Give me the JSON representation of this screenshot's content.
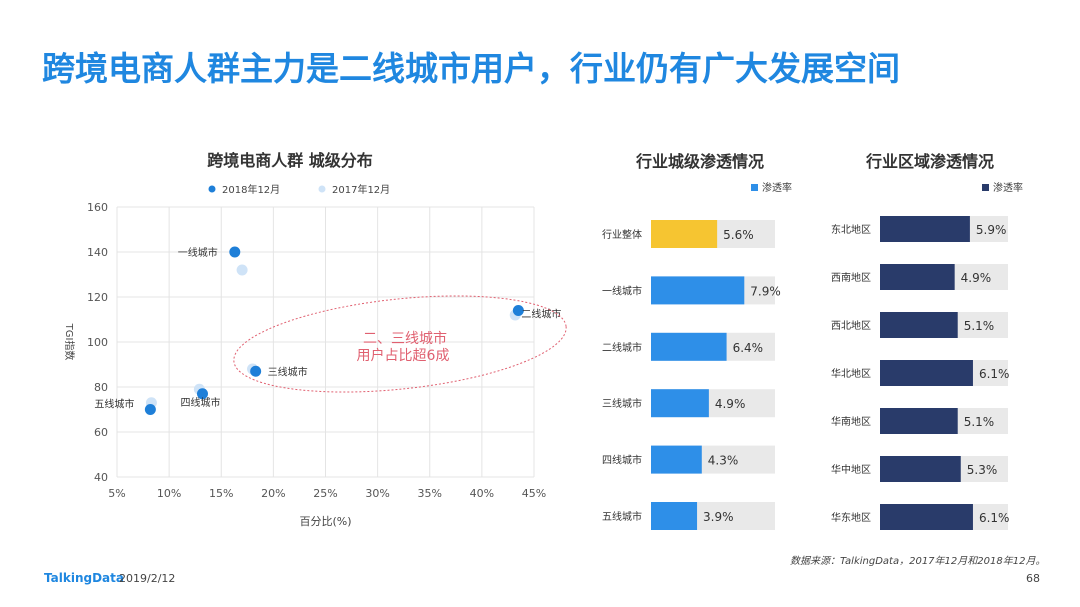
{
  "header": {
    "title": "跨境电商人群主力是二线城市用户，行业仍有广大发展空间"
  },
  "footer": {
    "brand": "TalkingData",
    "date": "2019/2/12",
    "page": "68",
    "source": "数据来源：TalkingData，2017年12月和2018年12月。"
  },
  "colors": {
    "title": "#1f87e0",
    "series_2018": "#1e7fd8",
    "series_2017": "#cfe3f7",
    "bar_blue": "#2e8fe8",
    "bar_overall": "#f6c531",
    "bar_navy": "#293b6a",
    "bar_track": "#e9e9e9",
    "ellipse": "#e06070"
  },
  "chart_data": [
    {
      "type": "scatter",
      "title": "跨境电商人群  城级分布",
      "xlabel": "百分比(%)",
      "ylabel": "TGI指数",
      "xlim": [
        5,
        45
      ],
      "ylim": [
        40,
        160
      ],
      "xticks": [
        "5%",
        "10%",
        "15%",
        "20%",
        "25%",
        "30%",
        "35%",
        "40%",
        "45%"
      ],
      "yticks": [
        "40",
        "60",
        "80",
        "100",
        "120",
        "140",
        "160"
      ],
      "grid": true,
      "legend_position": "top",
      "series": [
        {
          "name": "2018年12月",
          "points": [
            {
              "label": "一线城市",
              "x": 16.3,
              "y": 140
            },
            {
              "label": "二线城市",
              "x": 43.5,
              "y": 114
            },
            {
              "label": "三线城市",
              "x": 18.3,
              "y": 87
            },
            {
              "label": "四线城市",
              "x": 13.2,
              "y": 77
            },
            {
              "label": "五线城市",
              "x": 8.2,
              "y": 70
            }
          ]
        },
        {
          "name": "2017年12月",
          "points": [
            {
              "x": 17.0,
              "y": 132
            },
            {
              "x": 43.2,
              "y": 112
            },
            {
              "x": 18.0,
              "y": 88
            },
            {
              "x": 12.9,
              "y": 79
            },
            {
              "x": 8.3,
              "y": 73
            }
          ]
        }
      ],
      "annotation": {
        "line1": "二、三线城市",
        "line2": "用户占比超6成"
      }
    },
    {
      "type": "bar",
      "title": "行业城级渗透情况",
      "legend": "渗透率",
      "categories": [
        "行业整体",
        "一线城市",
        "二线城市",
        "三线城市",
        "四线城市",
        "五线城市"
      ],
      "values": [
        5.6,
        7.9,
        6.4,
        4.9,
        4.3,
        3.9
      ],
      "labels": [
        "5.6%",
        "7.9%",
        "6.4%",
        "4.9%",
        "4.3%",
        "3.9%"
      ],
      "xlim": [
        0,
        10.5
      ]
    },
    {
      "type": "bar",
      "title": "行业区域渗透情况",
      "legend": "渗透率",
      "categories": [
        "东北地区",
        "西南地区",
        "西北地区",
        "华北地区",
        "华南地区",
        "华中地区",
        "华东地区"
      ],
      "values": [
        5.9,
        4.9,
        5.1,
        6.1,
        5.1,
        5.3,
        6.1
      ],
      "labels": [
        "5.9%",
        "4.9%",
        "5.1%",
        "6.1%",
        "5.1%",
        "5.3%",
        "6.1%"
      ],
      "xlim": [
        0,
        8.4
      ]
    }
  ]
}
